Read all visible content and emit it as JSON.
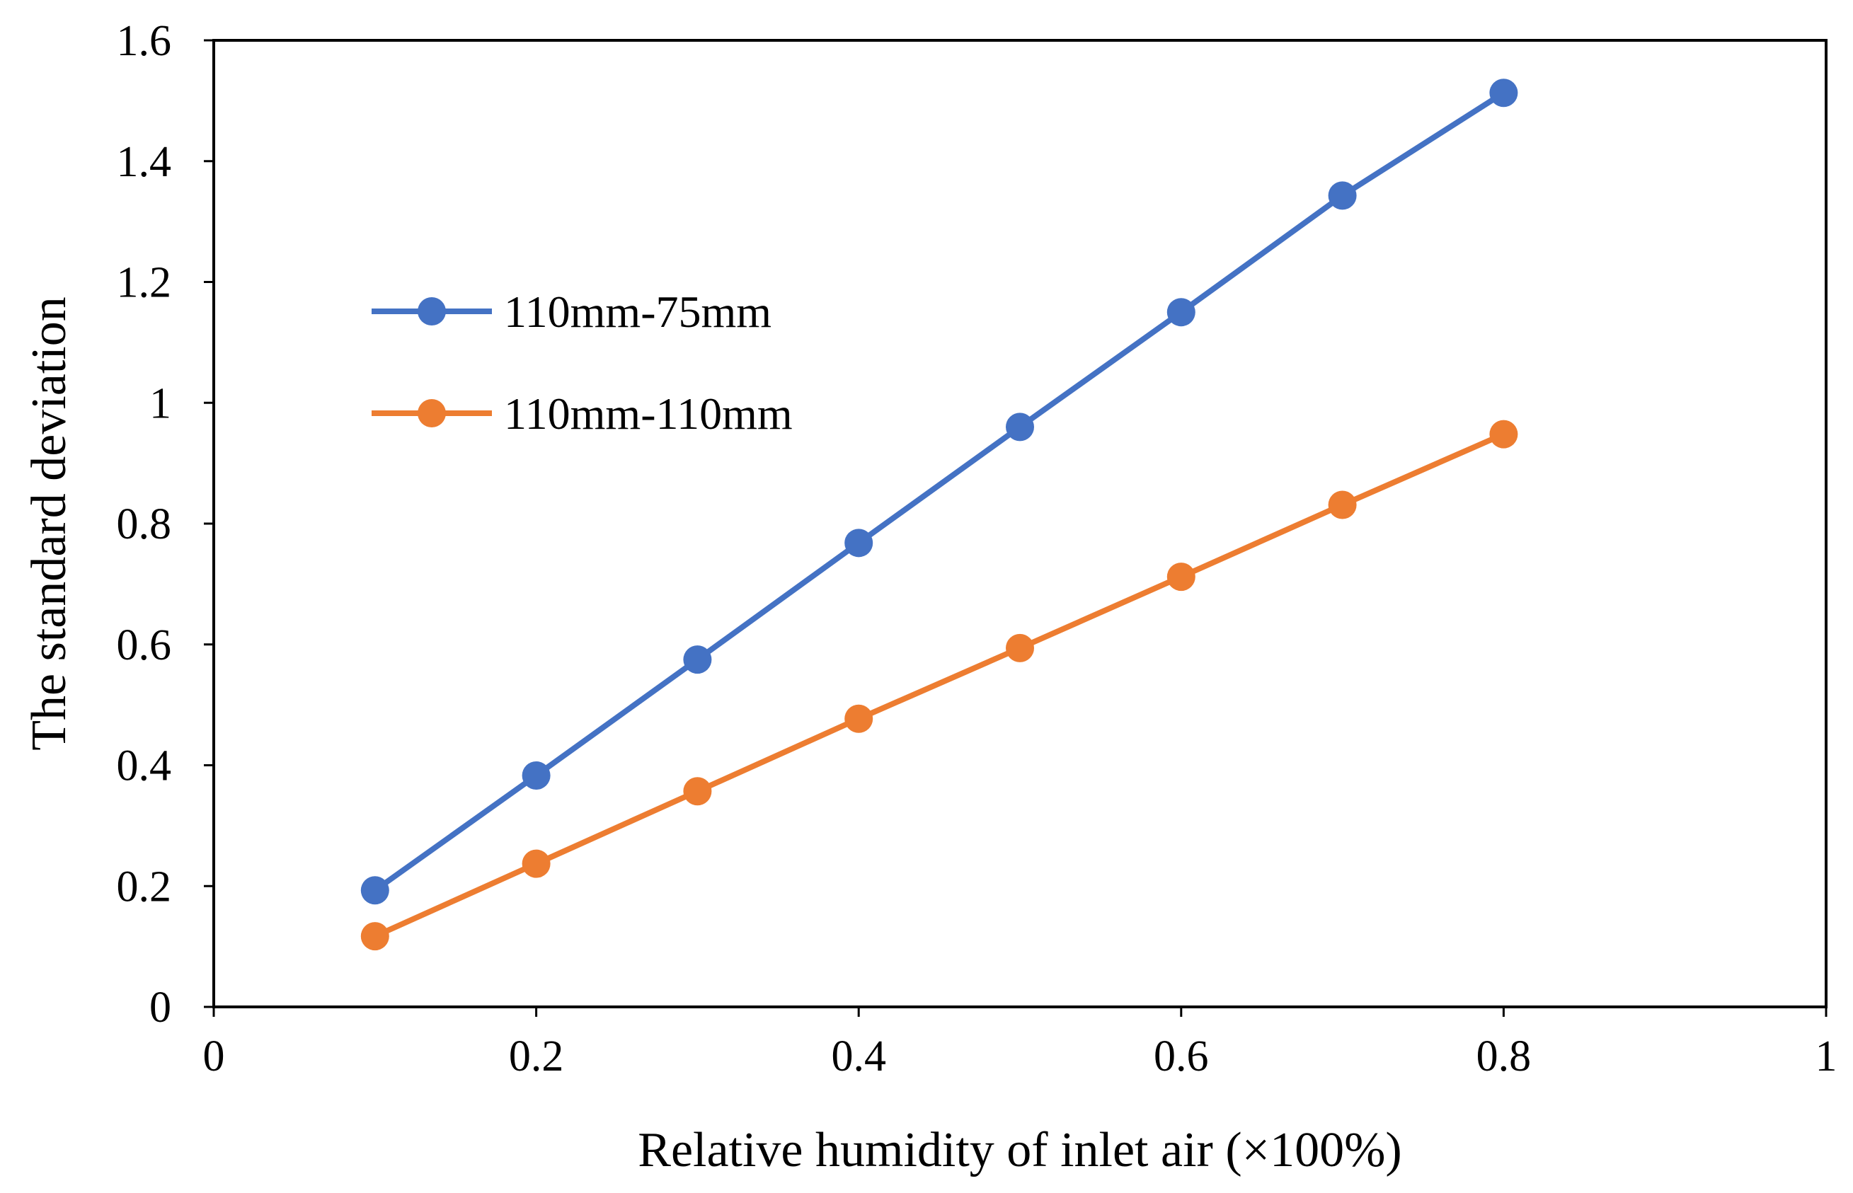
{
  "chart_data": {
    "type": "line",
    "title": "",
    "xlabel": "Relative humidity of inlet air (×100%)",
    "ylabel": "The standard deviation",
    "xlim": [
      0,
      1
    ],
    "ylim": [
      0,
      1.6
    ],
    "xticks": [
      0,
      0.2,
      0.4,
      0.6,
      0.8,
      1
    ],
    "xtick_labels": [
      "0",
      "0.2",
      "0.4",
      "0.6",
      "0.8",
      "1"
    ],
    "yticks": [
      0,
      0.2,
      0.4,
      0.6,
      0.8,
      1,
      1.2,
      1.4,
      1.6
    ],
    "ytick_labels": [
      "0",
      "0.2",
      "0.4",
      "0.6",
      "0.8",
      "1",
      "1.2",
      "1.4",
      "1.6"
    ],
    "grid": false,
    "legend_position": "upper-left inside",
    "x": [
      0.1,
      0.2,
      0.3,
      0.4,
      0.5,
      0.6,
      0.7,
      0.8
    ],
    "series": [
      {
        "name": "110mm-75mm",
        "color": "#4472C4",
        "values": [
          0.193,
          0.383,
          0.575,
          0.768,
          0.96,
          1.15,
          1.343,
          1.513
        ]
      },
      {
        "name": "110mm-110mm",
        "color": "#ED7D31",
        "values": [
          0.117,
          0.237,
          0.357,
          0.477,
          0.594,
          0.712,
          0.831,
          0.948
        ]
      }
    ]
  }
}
